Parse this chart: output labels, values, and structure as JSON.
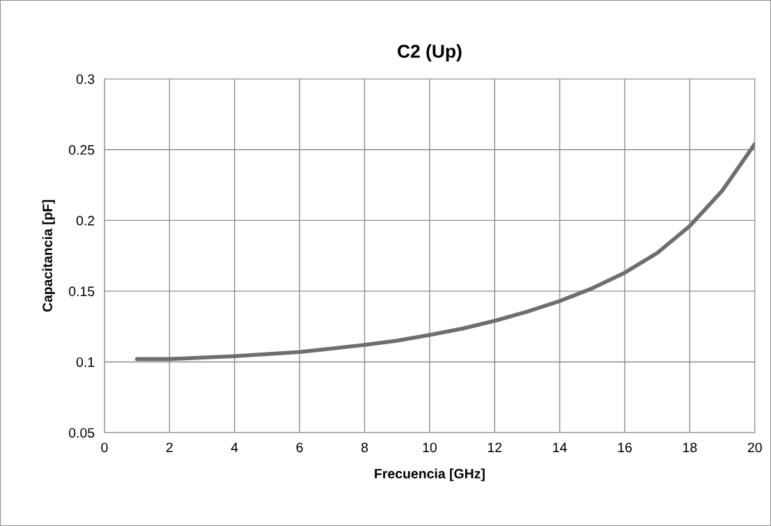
{
  "chart_data": {
    "type": "line",
    "title": "C2 (Up)",
    "xlabel": "Frecuencia [GHz]",
    "ylabel": "Capacitancia [pF]",
    "x": [
      1,
      2,
      3,
      4,
      5,
      6,
      7,
      8,
      9,
      10,
      11,
      12,
      13,
      14,
      15,
      16,
      17,
      18,
      19,
      20
    ],
    "series": [
      {
        "color": "#6e6e6e",
        "values": [
          0.102,
          0.102,
          0.103,
          0.104,
          0.1055,
          0.107,
          0.1095,
          0.112,
          0.115,
          0.119,
          0.1235,
          0.129,
          0.1355,
          0.143,
          0.152,
          0.163,
          0.177,
          0.196,
          0.221,
          0.254
        ]
      }
    ],
    "xlim": [
      0,
      20
    ],
    "xticks": [
      0,
      2,
      4,
      6,
      8,
      10,
      12,
      14,
      16,
      18,
      20
    ],
    "ylim": [
      0.05,
      0.3
    ],
    "yticks": [
      0.05,
      0.1,
      0.15,
      0.2,
      0.25,
      0.3
    ],
    "grid": true,
    "legend": false,
    "marker": "none",
    "line_style": "solid"
  }
}
